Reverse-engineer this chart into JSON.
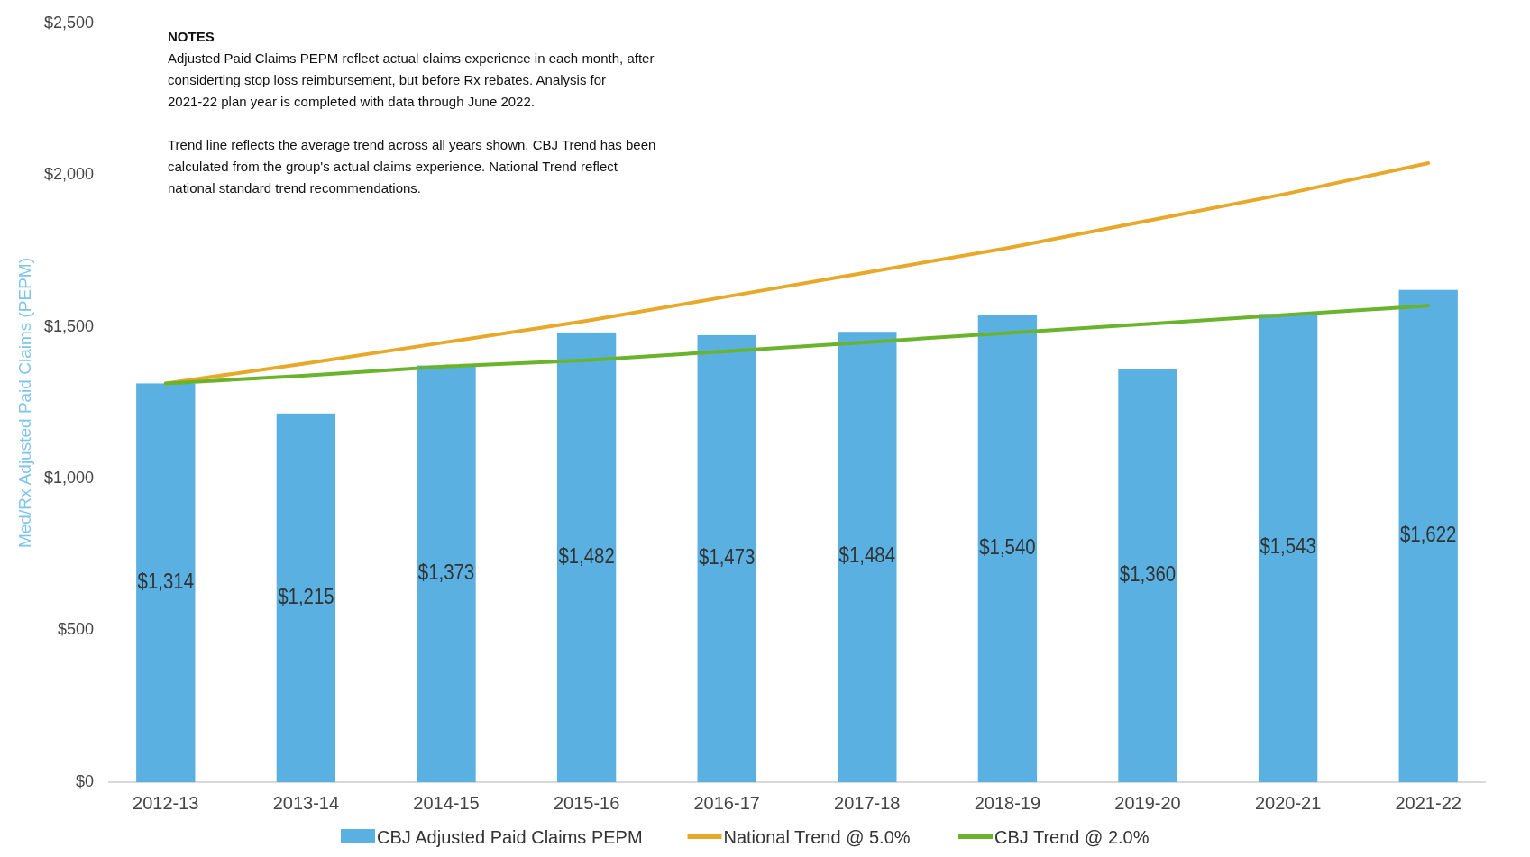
{
  "chart_data": {
    "type": "bar",
    "ylabel": "Med/Rx Adjusted Paid Claims (PEPM)",
    "categories": [
      "2012-13",
      "2013-14",
      "2014-15",
      "2015-16",
      "2016-17",
      "2017-18",
      "2018-19",
      "2019-20",
      "2020-21",
      "2021-22"
    ],
    "series": [
      {
        "name": "CBJ Adjusted Paid Claims PEPM",
        "color": "#5ab0e0",
        "values": [
          1314,
          1215,
          1373,
          1482,
          1473,
          1484,
          1540,
          1360,
          1543,
          1622
        ],
        "value_labels": [
          "$1,314",
          "$1,215",
          "$1,373",
          "$1,482",
          "$1,473",
          "$1,484",
          "$1,540",
          "$1,360",
          "$1,543",
          "$1,622"
        ]
      },
      {
        "name": "National Trend @ 5.0%",
        "type": "line",
        "color": "#e8a92a",
        "values": [
          1314,
          1380,
          1450,
          1520,
          1600,
          1680,
          1760,
          1850,
          1940,
          2040
        ]
      },
      {
        "name": "CBJ Trend @ 2.0%",
        "type": "line",
        "color": "#6ab42d",
        "values": [
          1314,
          1340,
          1370,
          1390,
          1420,
          1450,
          1480,
          1510,
          1540,
          1570
        ]
      }
    ],
    "ylim": [
      0,
      2500
    ],
    "yticks": [
      {
        "value": 0,
        "label": "$0"
      },
      {
        "value": 500,
        "label": "$500"
      },
      {
        "value": 1000,
        "label": "$1,000"
      },
      {
        "value": 1500,
        "label": "$1,500"
      },
      {
        "value": 2000,
        "label": "$2,000"
      },
      {
        "value": 2500,
        "label": "$2,500"
      }
    ],
    "grid": false,
    "legend": "bottom",
    "line_style": "solid",
    "marker": "none",
    "annotations": [
      "NOTES",
      "Adjusted Paid Claims PEPM reflect actual claims experience in each month, after considerting stop loss reimbursement, but before Rx rebates. Analysis for 2021-22 plan year is completed with data through June 2022.",
      "Trend line reflects the average trend across all years shown. CBJ Trend has been calculated from the group's actual claims experience. National Trend reflect national standard trend recommendations."
    ]
  }
}
